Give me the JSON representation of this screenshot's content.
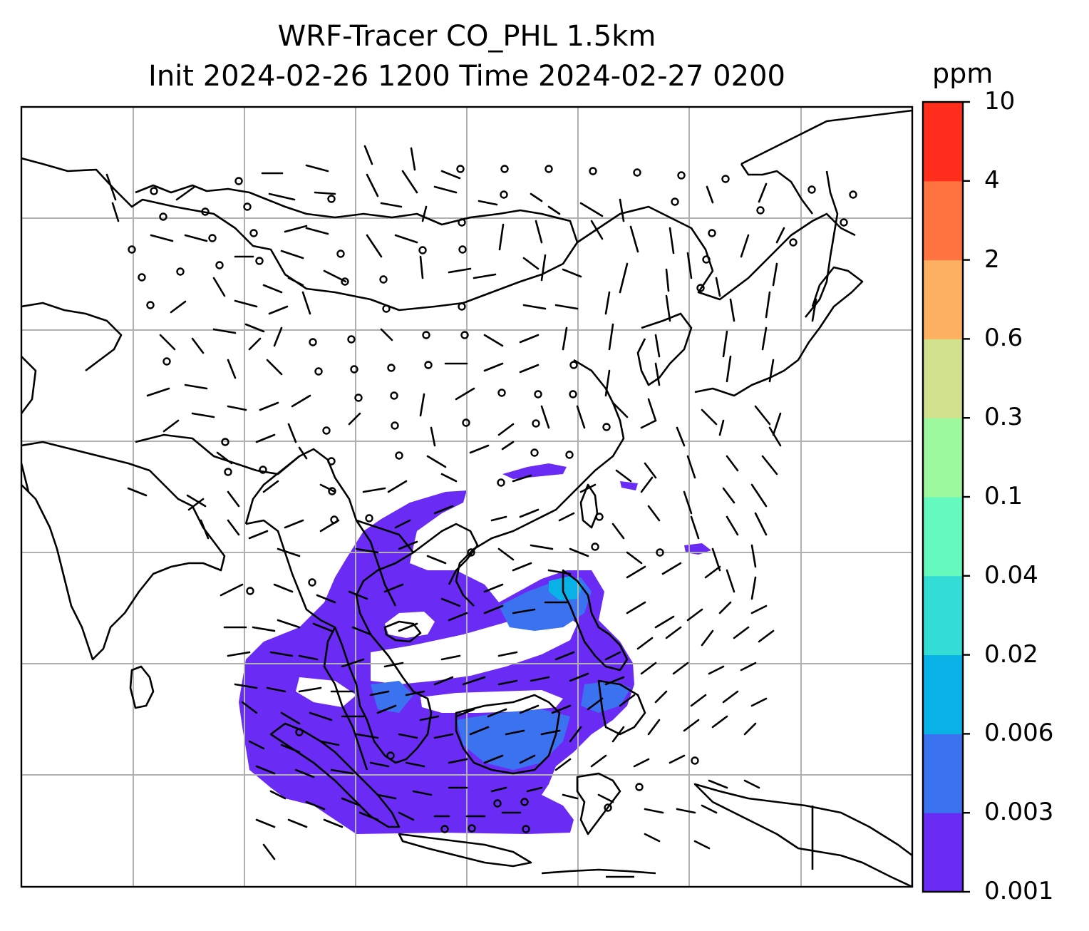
{
  "figure": {
    "title_line1": "WRF-Tracer CO_PHL 1.5km",
    "title_line2": "Init 2024-02-26 1200 Time 2024-02-27 0200"
  },
  "colorbar": {
    "unit": "ppm",
    "ticks": [
      "0.001",
      "0.003",
      "0.006",
      "0.02",
      "0.04",
      "0.1",
      "0.3",
      "0.6",
      "2",
      "4",
      "10"
    ],
    "colors": [
      "#6a2cf5",
      "#3b72f0",
      "#08b2e6",
      "#33dcd4",
      "#66f9bd",
      "#9cf89c",
      "#d0e08c",
      "#fdb160",
      "#ff7340",
      "#ff2d1b"
    ]
  },
  "map": {
    "field": "CO_PHL tracer concentration",
    "plume_levels_visible": [
      "0.001",
      "0.003",
      "0.006",
      "0.02"
    ],
    "grid": true,
    "wind_barbs": true,
    "calm_circles": true
  }
}
